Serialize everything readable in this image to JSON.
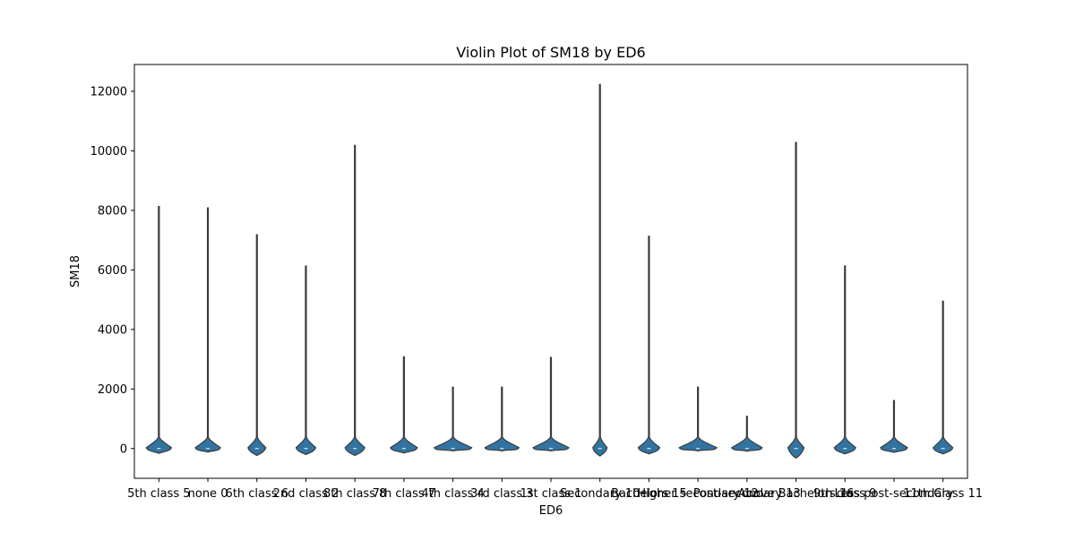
{
  "chart_data": {
    "type": "violin",
    "title": "Violin Plot of SM18 by ED6",
    "xlabel": "ED6",
    "ylabel": "SM18",
    "ylim": [
      -1000,
      12900
    ],
    "yticks": [
      0,
      2000,
      4000,
      6000,
      8000,
      10000,
      12000
    ],
    "grid": false,
    "categories": [
      "5th class 5",
      "none 0",
      "6th class 6",
      "2nd class 2",
      "8th class 8",
      "7th class 7",
      "4th class 4",
      "3rd class 3",
      "1st class 1",
      "Secondary 10",
      "Bachelors 15",
      "Higher secondary 12",
      "Post-secondary 13",
      "Above Bachelors 16",
      "9th class 9",
      "Less post-secondary",
      "11th Class 11"
    ],
    "violins": [
      {
        "max": 8150,
        "min": -160,
        "body_half_width": 14
      },
      {
        "max": 8100,
        "min": -120,
        "body_half_width": 14
      },
      {
        "max": 7200,
        "min": -230,
        "body_half_width": 10
      },
      {
        "max": 6150,
        "min": -200,
        "body_half_width": 11
      },
      {
        "max": 10200,
        "min": -230,
        "body_half_width": 11
      },
      {
        "max": 3100,
        "min": -150,
        "body_half_width": 15
      },
      {
        "max": 2080,
        "min": -80,
        "body_half_width": 21
      },
      {
        "max": 2080,
        "min": -80,
        "body_half_width": 19
      },
      {
        "max": 3080,
        "min": -80,
        "body_half_width": 20
      },
      {
        "max": 12250,
        "min": -250,
        "body_half_width": 8
      },
      {
        "max": 7150,
        "min": -180,
        "body_half_width": 12
      },
      {
        "max": 2080,
        "min": -80,
        "body_half_width": 21
      },
      {
        "max": 1100,
        "min": -90,
        "body_half_width": 17
      },
      {
        "max": 10300,
        "min": -320,
        "body_half_width": 9
      },
      {
        "max": 6150,
        "min": -180,
        "body_half_width": 12
      },
      {
        "max": 1630,
        "min": -130,
        "body_half_width": 15
      },
      {
        "max": 4970,
        "min": -180,
        "body_half_width": 11
      }
    ],
    "colors": {
      "violin_fill": "#3274a1",
      "violin_edge": "#3b3b3b",
      "axis": "#000000"
    }
  }
}
